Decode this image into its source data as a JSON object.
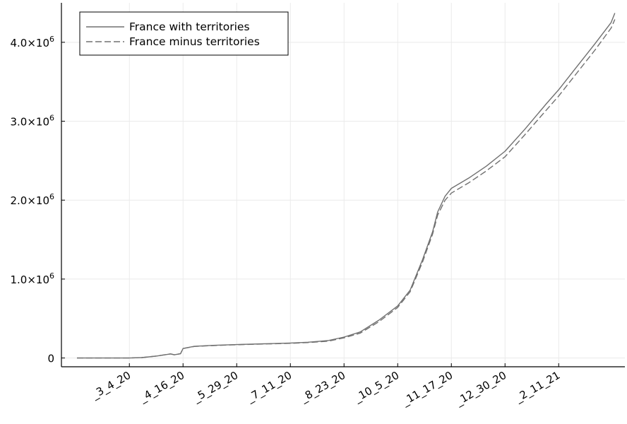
{
  "chart_data": {
    "type": "line",
    "grid": true,
    "legend_position": "top-left",
    "x_ticks": [
      "_3_4_20",
      "_4_16_20",
      "_5_29_20",
      "_7_11_20",
      "_8_23_20",
      "_10_5_20",
      "_11_17_20",
      "_12_30_20",
      "_2_11_21"
    ],
    "y_ticks": [
      {
        "value": 0,
        "mantissa": "0",
        "exp": ""
      },
      {
        "value": 1000000,
        "mantissa": "1.0×10",
        "exp": "6"
      },
      {
        "value": 2000000,
        "mantissa": "2.0×10",
        "exp": "6"
      },
      {
        "value": 3000000,
        "mantissa": "3.0×10",
        "exp": "6"
      },
      {
        "value": 4000000,
        "mantissa": "4.0×10",
        "exp": "6"
      }
    ],
    "ylim": [
      -120000,
      4500000
    ],
    "series": [
      {
        "name": "France with territories",
        "style": "solid",
        "color": "#707070",
        "points": [
          [
            "_1_22_20",
            0
          ],
          [
            "_2_15_20",
            0
          ],
          [
            "_3_4_20",
            0
          ],
          [
            "_3_14_20",
            5000
          ],
          [
            "_3_26_20",
            25000
          ],
          [
            "_4_6_20",
            52000
          ],
          [
            "_4_9_20",
            40000
          ],
          [
            "_4_14_20",
            55000
          ],
          [
            "_4_16_20",
            120000
          ],
          [
            "_4_25_20",
            148000
          ],
          [
            "_5_10_20",
            160000
          ],
          [
            "_5_29_20",
            170000
          ],
          [
            "_6_20_20",
            180000
          ],
          [
            "_7_11_20",
            190000
          ],
          [
            "_7_25_20",
            200000
          ],
          [
            "_8_10_20",
            220000
          ],
          [
            "_8_23_20",
            265000
          ],
          [
            "_9_5_20",
            330000
          ],
          [
            "_9_20_20",
            480000
          ],
          [
            "_10_5_20",
            660000
          ],
          [
            "_10_15_20",
            860000
          ],
          [
            "_10_25_20",
            1250000
          ],
          [
            "_11_2_20",
            1600000
          ],
          [
            "_11_6_20",
            1850000
          ],
          [
            "_11_12_20",
            2050000
          ],
          [
            "_11_17_20",
            2150000
          ],
          [
            "_12_1_20",
            2280000
          ],
          [
            "_12_15_20",
            2430000
          ],
          [
            "_12_30_20",
            2620000
          ],
          [
            "_1_15_21",
            2900000
          ],
          [
            "_2_1_21",
            3220000
          ],
          [
            "_2_11_21",
            3400000
          ],
          [
            "_2_25_21",
            3680000
          ],
          [
            "_3_12_21",
            3980000
          ],
          [
            "_3_25_21",
            4250000
          ],
          [
            "_3_28_21",
            4370000
          ]
        ]
      },
      {
        "name": "France minus territories",
        "style": "dashed",
        "color": "#707070",
        "points": [
          [
            "_1_22_20",
            0
          ],
          [
            "_2_15_20",
            0
          ],
          [
            "_3_4_20",
            0
          ],
          [
            "_3_14_20",
            5000
          ],
          [
            "_3_26_20",
            25000
          ],
          [
            "_4_6_20",
            52000
          ],
          [
            "_4_9_20",
            40000
          ],
          [
            "_4_14_20",
            55000
          ],
          [
            "_4_16_20",
            120000
          ],
          [
            "_4_25_20",
            146000
          ],
          [
            "_5_10_20",
            158000
          ],
          [
            "_5_29_20",
            168000
          ],
          [
            "_6_20_20",
            177000
          ],
          [
            "_7_11_20",
            186000
          ],
          [
            "_7_25_20",
            195000
          ],
          [
            "_8_10_20",
            212000
          ],
          [
            "_8_23_20",
            255000
          ],
          [
            "_9_5_20",
            315000
          ],
          [
            "_9_20_20",
            460000
          ],
          [
            "_10_5_20",
            640000
          ],
          [
            "_10_15_20",
            840000
          ],
          [
            "_10_25_20",
            1220000
          ],
          [
            "_11_2_20",
            1570000
          ],
          [
            "_11_6_20",
            1810000
          ],
          [
            "_11_12_20",
            2000000
          ],
          [
            "_11_17_20",
            2090000
          ],
          [
            "_12_1_20",
            2220000
          ],
          [
            "_12_15_20",
            2370000
          ],
          [
            "_12_30_20",
            2550000
          ],
          [
            "_1_15_21",
            2830000
          ],
          [
            "_2_1_21",
            3140000
          ],
          [
            "_2_11_21",
            3320000
          ],
          [
            "_2_25_21",
            3600000
          ],
          [
            "_3_12_21",
            3900000
          ],
          [
            "_3_25_21",
            4180000
          ],
          [
            "_3_28_21",
            4290000
          ]
        ]
      }
    ]
  }
}
